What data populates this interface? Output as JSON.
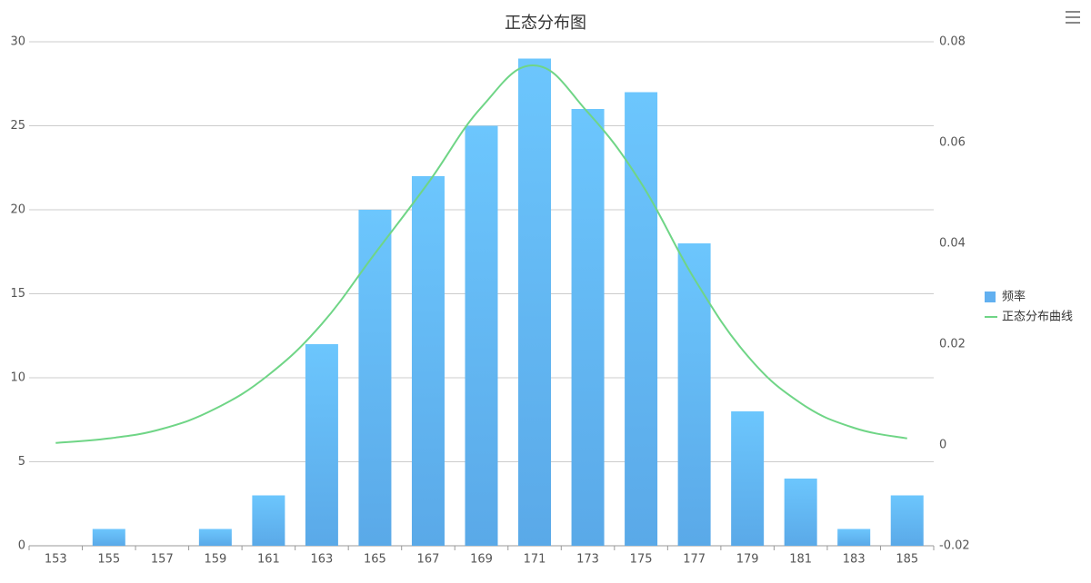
{
  "chart_data": {
    "type": "bar",
    "title": "正态分布图",
    "categories": [
      "153",
      "155",
      "157",
      "159",
      "161",
      "163",
      "165",
      "167",
      "169",
      "171",
      "173",
      "175",
      "177",
      "179",
      "181",
      "183",
      "185"
    ],
    "series": [
      {
        "name": "频率",
        "type": "bar",
        "color": "#62b0f0",
        "values": [
          0,
          1,
          0,
          1,
          3,
          12,
          20,
          22,
          25,
          29,
          26,
          27,
          18,
          8,
          4,
          1,
          3
        ]
      },
      {
        "name": "正态分布曲线",
        "type": "line",
        "axis": "y2",
        "color": "#6fd586",
        "values": [
          0.0004,
          0.0013,
          0.0032,
          0.0072,
          0.0139,
          0.024,
          0.038,
          0.052,
          0.067,
          0.0753,
          0.066,
          0.052,
          0.033,
          0.0177,
          0.0083,
          0.0034,
          0.0013
        ]
      }
    ],
    "ylim": [
      0,
      30
    ],
    "yticks": [
      0,
      5,
      10,
      15,
      20,
      25,
      30
    ],
    "y2lim": [
      -0.02,
      0.08
    ],
    "y2ticks": [
      -0.02,
      0,
      0.02,
      0.04,
      0.06,
      0.08
    ],
    "grid": true,
    "legend": "right"
  }
}
